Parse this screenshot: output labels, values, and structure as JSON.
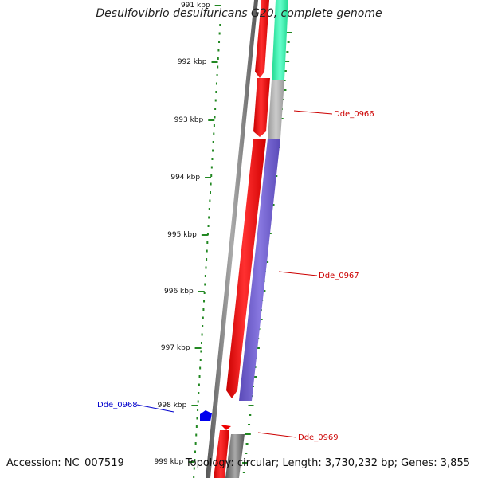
{
  "title": "Desulfovibrio desulfuricans G20, complete genome",
  "footer": {
    "accession": "Accession: NC_007519",
    "topology": "Topology: circular; Length: 3,730,232 bp; Genes: 3,855"
  },
  "ruler": {
    "labels": [
      "991 kbp",
      "992 kbp",
      "993 kbp",
      "994 kbp",
      "995 kbp",
      "996 kbp",
      "997 kbp",
      "998 kbp",
      "999 kbp"
    ],
    "color": "#228822"
  },
  "gene_labels": [
    {
      "text": "Dde_0966",
      "color": "#cc0000"
    },
    {
      "text": "Dde_0967",
      "color": "#cc0000"
    },
    {
      "text": "Dde_0968",
      "color": "#0000cc"
    },
    {
      "text": "Dde_0969",
      "color": "#cc0000"
    }
  ],
  "colors": {
    "forward_gene": "#ee0000",
    "reverse_gene": "#6a5acd",
    "teal_gene": "#33eeaa",
    "gray_gene": "#aaaaaa",
    "backbone": "#777777",
    "blue_feature": "#0000ee"
  }
}
